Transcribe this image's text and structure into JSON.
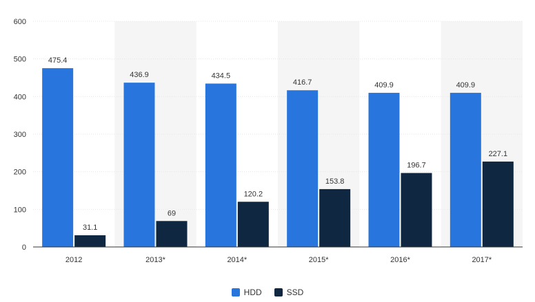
{
  "chart_data": {
    "type": "bar",
    "categories": [
      "2012",
      "2013*",
      "2014*",
      "2015*",
      "2016*",
      "2017*"
    ],
    "series": [
      {
        "name": "HDD",
        "values": [
          475.4,
          436.9,
          434.5,
          416.7,
          409.9,
          409.9
        ],
        "labels": [
          "475.4",
          "436.9",
          "434.5",
          "416.7",
          "409.9",
          "409.9"
        ],
        "color": "#2876dd"
      },
      {
        "name": "SSD",
        "values": [
          31.1,
          69,
          120.2,
          153.8,
          196.7,
          227.1
        ],
        "labels": [
          "31.1",
          "69",
          "120.2",
          "153.8",
          "196.7",
          "227.1"
        ],
        "color": "#0f2740"
      }
    ],
    "ylim": [
      0,
      600
    ],
    "yticks": [
      "0",
      "100",
      "200",
      "300",
      "400",
      "500",
      "600"
    ],
    "grid": true,
    "legend_position": "bottom-center",
    "alternating_band_color": "#f5f5f5",
    "grid_color": "#e6e6e6"
  }
}
